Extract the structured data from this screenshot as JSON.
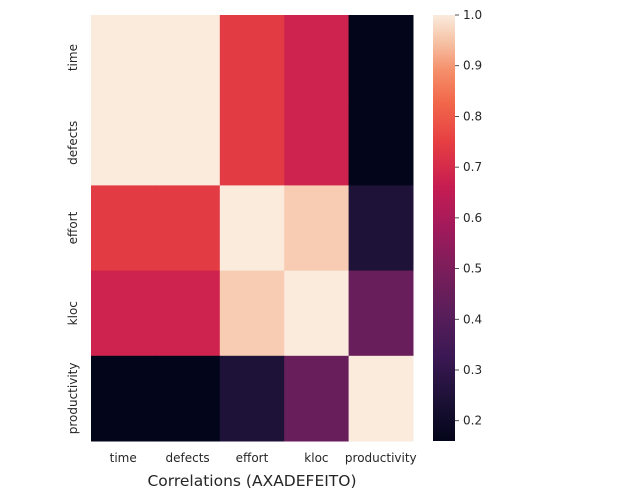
{
  "chart_data": {
    "type": "heatmap",
    "xlabel": "Correlations (AXADEFEITO)",
    "ylabel": "",
    "x_categories": [
      "time",
      "defects",
      "effort",
      "kloc",
      "productivity"
    ],
    "y_categories": [
      "time",
      "defects",
      "effort",
      "kloc",
      "productivity"
    ],
    "values": [
      [
        1.0,
        1.0,
        0.74,
        0.68,
        0.16
      ],
      [
        1.0,
        1.0,
        0.74,
        0.68,
        0.16
      ],
      [
        0.74,
        0.74,
        1.0,
        0.96,
        0.25
      ],
      [
        0.68,
        0.68,
        0.96,
        1.0,
        0.45
      ],
      [
        0.16,
        0.16,
        0.25,
        0.45,
        1.0
      ]
    ],
    "colorbar": {
      "min": 0.16,
      "max": 1.0,
      "ticks": [
        "0.2",
        "0.3",
        "0.4",
        "0.5",
        "0.6",
        "0.7",
        "0.8",
        "0.9",
        "1.0"
      ],
      "colormap": "rocket"
    },
    "colormap_stops": [
      [
        0.0,
        "#03051a"
      ],
      [
        0.1,
        "#1d1137"
      ],
      [
        0.2,
        "#3b1854"
      ],
      [
        0.3,
        "#591e5a"
      ],
      [
        0.4,
        "#7a1e5b"
      ],
      [
        0.5,
        "#a11a5b"
      ],
      [
        0.6,
        "#c71d51"
      ],
      [
        0.7,
        "#e63e42"
      ],
      [
        0.8,
        "#f26a4c"
      ],
      [
        0.87,
        "#f58f6b"
      ],
      [
        0.94,
        "#f6c4a8"
      ],
      [
        1.0,
        "#faebdd"
      ]
    ]
  }
}
